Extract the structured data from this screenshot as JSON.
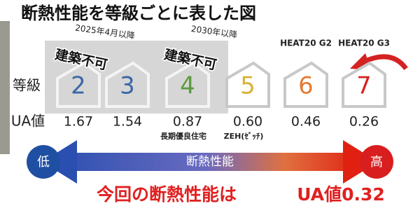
{
  "title": "断熱性能を等級ごとに表した図",
  "row_labels": {
    "grade": "等級",
    "ua": "UA値"
  },
  "grades": [
    {
      "grade": 2,
      "ua": "1.67",
      "color": "#3b67a6",
      "note": "2025年4月以降",
      "stamp": "建築不可"
    },
    {
      "grade": 3,
      "ua": "1.54",
      "color": "#3b67a6"
    },
    {
      "grade": 4,
      "ua": "0.87",
      "color": "#5b9b3c",
      "note": "2030年以降",
      "stamp": "建築不可",
      "sublabel": "長期優良住宅"
    },
    {
      "grade": 5,
      "ua": "0.60",
      "color": "#d9b233",
      "sublabel": "ZEH(ｾﾞｯﾁ)"
    },
    {
      "grade": 6,
      "ua": "0.46",
      "color": "#e37b32",
      "label": "HEAT20 G2"
    },
    {
      "grade": 7,
      "ua": "0.26",
      "color": "#d42222",
      "label": "HEAT20 G3"
    }
  ],
  "scale": {
    "low": "低",
    "high": "高",
    "label": "断熱性能"
  },
  "footer": {
    "text": "今回の断熱性能は",
    "value": "UA値0.32"
  }
}
